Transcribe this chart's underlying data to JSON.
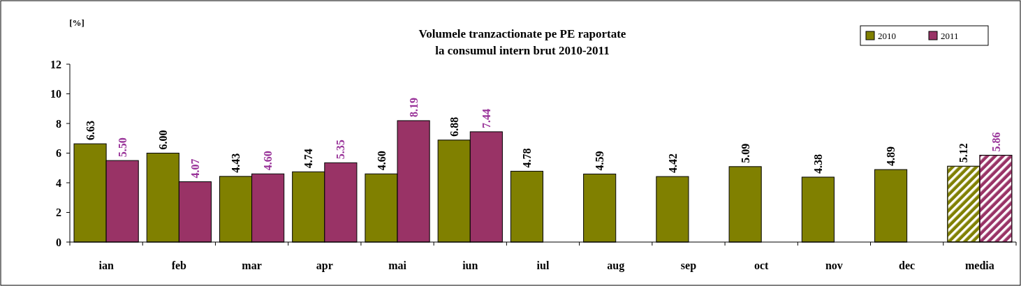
{
  "chart_data": {
    "type": "bar",
    "title": "Volumele tranzactionate pe PE raportate\nla consumul intern brut 2010-2011",
    "ylabel": "[%]",
    "categories": [
      "ian",
      "feb",
      "mar",
      "apr",
      "mai",
      "iun",
      "iul",
      "aug",
      "sep",
      "oct",
      "nov",
      "dec",
      "media"
    ],
    "series": [
      {
        "name": "2010",
        "color": "#808000",
        "values": [
          6.63,
          6.0,
          4.43,
          4.74,
          4.6,
          6.88,
          4.78,
          4.59,
          4.42,
          5.09,
          4.38,
          4.89,
          5.12
        ],
        "value_labels": [
          "6.63",
          "6.00",
          "4.43",
          "4.74",
          "4.60",
          "6.88",
          "4.78",
          "4.59",
          "4.42",
          "5.09",
          "4.38",
          "4.89",
          "5.12"
        ]
      },
      {
        "name": "2011",
        "color": "#993366",
        "values": [
          5.5,
          4.07,
          4.6,
          5.35,
          8.19,
          7.44,
          null,
          null,
          null,
          null,
          null,
          null,
          5.86
        ],
        "value_labels": [
          "5.50",
          "4.07",
          "4.60",
          "5.35",
          "8.19",
          "7.44",
          null,
          null,
          null,
          null,
          null,
          null,
          "5.86"
        ]
      }
    ],
    "ylim": [
      0,
      12
    ],
    "yticks": [
      0,
      2,
      4,
      6,
      8,
      10,
      12
    ],
    "legend": "top right",
    "grid": false
  }
}
